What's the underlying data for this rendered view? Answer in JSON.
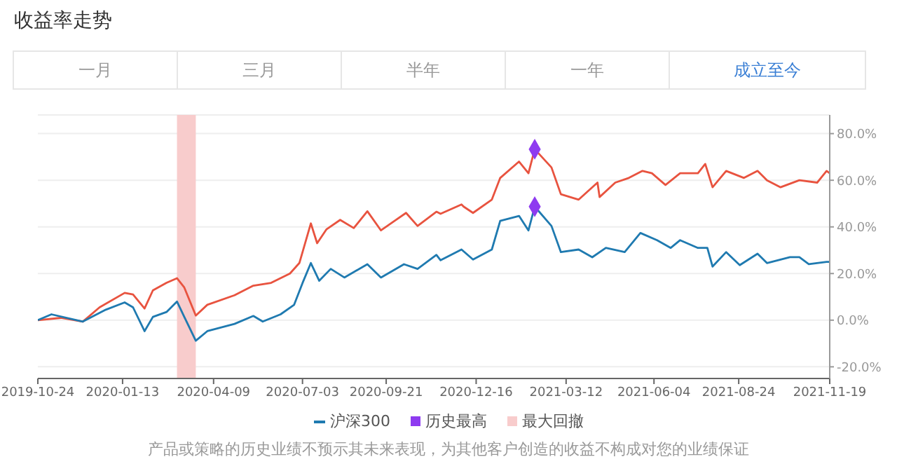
{
  "chart_data": {
    "type": "line",
    "title": "收益率走势",
    "annotations": [
      "一月",
      "三月",
      "半年",
      "一年",
      "成立至今",
      "产品或策略的历史业绩不预示其未来表现，为其他客户创造的收益不构成对您的业绩保证"
    ],
    "series": [
      {
        "color": "#e8533f",
        "x": [
          "2019-10-24",
          "2019-11-15",
          "2019-12-06",
          "2019-12-22",
          "2020-01-15",
          "2020-01-23",
          "2020-02-03",
          "2020-02-11",
          "2020-02-24",
          "2020-03-05",
          "2020-03-12",
          "2020-03-23",
          "2020-04-03",
          "2020-04-29",
          "2020-05-17",
          "2020-06-03",
          "2020-06-21",
          "2020-06-30",
          "2020-07-11",
          "2020-07-17",
          "2020-07-26",
          "2020-08-08",
          "2020-08-21",
          "2020-09-03",
          "2020-09-16",
          "2020-09-29",
          "2020-10-10",
          "2020-10-21",
          "2020-11-08",
          "2020-11-12",
          "2020-12-02",
          "2020-12-04",
          "2020-12-13",
          "2020-12-31",
          "2021-01-08",
          "2021-01-26",
          "2021-02-04",
          "2021-02-10",
          "2021-02-26",
          "2021-03-07",
          "2021-03-24",
          "2021-04-11",
          "2021-04-13",
          "2021-04-28",
          "2021-05-11",
          "2021-05-24",
          "2021-06-02",
          "2021-06-15",
          "2021-06-29",
          "2021-07-16",
          "2021-07-23",
          "2021-07-30",
          "2021-08-12",
          "2021-08-29",
          "2021-09-11",
          "2021-09-20",
          "2021-10-03",
          "2021-10-21",
          "2021-11-07",
          "2021-11-16",
          "2021-11-19"
        ],
        "values": [
          0,
          1,
          -0.6,
          5.5,
          11.7,
          11,
          5,
          12.8,
          16,
          18,
          14,
          2,
          6.6,
          10.7,
          14.8,
          16,
          20,
          24.5,
          41.5,
          33,
          39,
          43,
          39.5,
          46.7,
          38.5,
          42.6,
          46,
          40.4,
          46.5,
          45.6,
          49.6,
          48.7,
          46,
          51.7,
          61,
          68,
          63,
          73.3,
          65.5,
          54,
          51.7,
          59,
          52.8,
          59,
          61,
          64,
          63,
          58,
          63,
          63,
          67,
          57,
          64,
          61,
          64,
          60,
          57,
          60,
          59,
          64,
          63
        ]
      },
      {
        "name": "沪深300",
        "color": "#1f7ab0",
        "x": [
          "2019-10-24",
          "2019-11-06",
          "2019-12-06",
          "2019-12-28",
          "2020-01-15",
          "2020-01-23",
          "2020-02-03",
          "2020-02-11",
          "2020-02-24",
          "2020-03-05",
          "2020-03-12",
          "2020-03-23",
          "2020-04-03",
          "2020-04-29",
          "2020-05-17",
          "2020-05-26",
          "2020-06-12",
          "2020-06-25",
          "2020-07-03",
          "2020-07-11",
          "2020-07-19",
          "2020-07-30",
          "2020-08-12",
          "2020-09-03",
          "2020-09-16",
          "2020-10-08",
          "2020-10-21",
          "2020-11-08",
          "2020-11-12",
          "2020-12-02",
          "2020-12-13",
          "2020-12-31",
          "2021-01-08",
          "2021-01-26",
          "2021-02-04",
          "2021-02-10",
          "2021-02-26",
          "2021-03-07",
          "2021-03-24",
          "2021-04-06",
          "2021-04-19",
          "2021-05-07",
          "2021-05-22",
          "2021-06-07",
          "2021-06-20",
          "2021-06-29",
          "2021-07-16",
          "2021-07-25",
          "2021-07-30",
          "2021-08-12",
          "2021-08-25",
          "2021-09-11",
          "2021-09-20",
          "2021-10-12",
          "2021-10-21",
          "2021-10-30",
          "2021-11-16",
          "2021-11-19"
        ],
        "values": [
          0,
          2.5,
          -0.6,
          4.5,
          7.6,
          5.5,
          -4.7,
          1.4,
          3.5,
          8,
          1.4,
          -8.8,
          -4.7,
          -1.6,
          1.8,
          -0.6,
          2.5,
          6.6,
          15.9,
          24.5,
          16.9,
          22,
          18.3,
          24,
          18.3,
          24,
          22,
          28,
          25.7,
          30.3,
          26,
          30.3,
          42.6,
          44.7,
          38.5,
          48.7,
          40.4,
          29.2,
          30.3,
          27,
          31,
          29.2,
          37.4,
          34.3,
          31,
          34.3,
          31,
          31,
          23,
          29.2,
          23.6,
          28.5,
          24.5,
          27,
          27,
          24,
          25,
          25
        ]
      },
      {
        "name": "历史最高",
        "type": "scatter",
        "marker": "diamond",
        "color": "#8e3bf0",
        "x": [
          "2021-02-10",
          "2021-02-10"
        ],
        "values": [
          73.3,
          48.7
        ]
      }
    ],
    "bands": [
      {
        "axis": "x",
        "from": "2020-03-05",
        "to": "2020-03-23",
        "label": "最大回撤",
        "color": "#f8cccc"
      }
    ],
    "xlim": [
      "2019-10-24",
      "2021-11-19"
    ],
    "xticks": [
      "2019-10-24",
      "2020-01-13",
      "2020-04-09",
      "2020-07-03",
      "2020-09-21",
      "2020-12-16",
      "2021-03-12",
      "2021-06-04",
      "2021-08-24",
      "2021-11-19"
    ],
    "ylim": [
      -25,
      88
    ],
    "yticks": [
      {
        "value": -20,
        "label": "-20.0%"
      },
      {
        "value": 0,
        "label": "0.0%"
      },
      {
        "value": 20,
        "label": "20.0%"
      },
      {
        "value": 40,
        "label": "40.0%"
      },
      {
        "value": 60,
        "label": "60.0%"
      },
      {
        "value": 80,
        "label": "80.0%"
      }
    ],
    "grid": "y",
    "legend": "bottom"
  }
}
